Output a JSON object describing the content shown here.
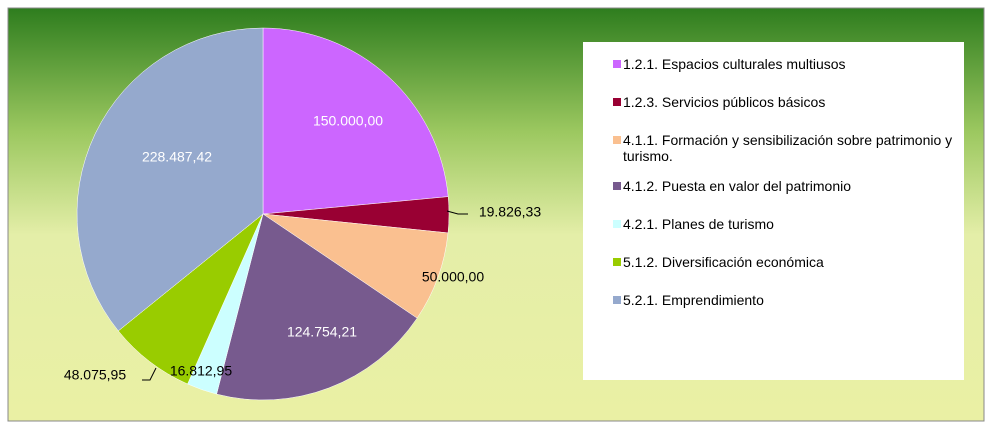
{
  "chart_data": {
    "type": "pie",
    "categories": [
      "1.2.1. Espacios culturales multiusos",
      "1.2.3. Servicios públicos básicos",
      "4.1.1. Formación y sensibilización sobre patrimonio y turismo.",
      "4.1.2. Puesta en valor del patrimonio",
      "4.2.1. Planes de turismo",
      "5.1.2. Diversificación económica",
      "5.2.1. Emprendimiento"
    ],
    "values": [
      150000,
      19826.33,
      50000,
      124754.21,
      16812.95,
      48075.95,
      228487.42
    ],
    "value_labels": [
      "150.000,00",
      "19.826,33",
      "50.000,00",
      "124.754,21",
      "16.812,95",
      "48.075,95",
      "228.487,42"
    ],
    "colors": [
      "#cc66ff",
      "#990033",
      "#fac090",
      "#775a8e",
      "#ccffff",
      "#99cc00",
      "#95a9cd"
    ],
    "legend": "right"
  }
}
